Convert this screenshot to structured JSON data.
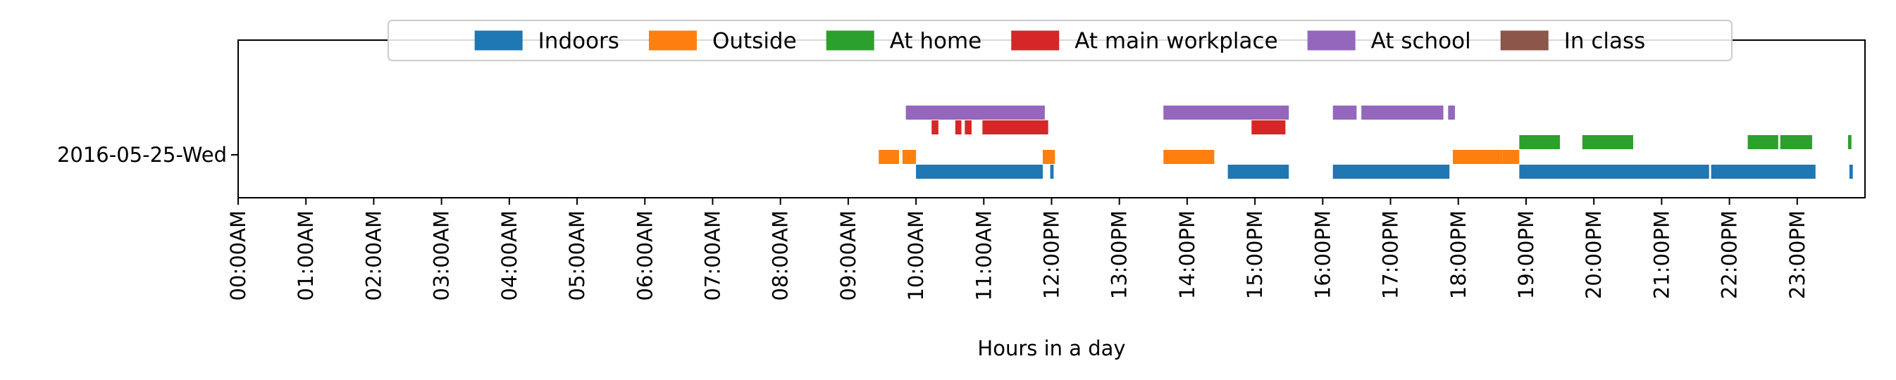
{
  "chart_data": {
    "type": "timeline",
    "xlabel": "Hours in a day",
    "ylabel": "",
    "row_label": "2016-05-25-Wed",
    "xlim": [
      0,
      24
    ],
    "x_ticks": [
      "00:00AM",
      "01:00AM",
      "02:00AM",
      "03:00AM",
      "04:00AM",
      "05:00AM",
      "06:00AM",
      "07:00AM",
      "08:00AM",
      "09:00AM",
      "10:00AM",
      "11:00AM",
      "12:00PM",
      "13:00PM",
      "14:00PM",
      "15:00PM",
      "16:00PM",
      "17:00PM",
      "18:00PM",
      "19:00PM",
      "20:00PM",
      "21:00PM",
      "22:00PM",
      "23:00PM"
    ],
    "grid": false,
    "legend_position": "top-center",
    "series": [
      {
        "name": "Indoors",
        "color": "#1f77b4",
        "intervals": [
          [
            10.0,
            11.87
          ],
          [
            11.98,
            12.03
          ],
          [
            14.6,
            15.5
          ],
          [
            16.15,
            17.87
          ],
          [
            18.9,
            21.7
          ],
          [
            21.73,
            23.27
          ],
          [
            23.77,
            23.82
          ]
        ]
      },
      {
        "name": "Outside",
        "color": "#ff7f0e",
        "intervals": [
          [
            9.45,
            9.75
          ],
          [
            9.8,
            10.0
          ],
          [
            11.87,
            12.05
          ],
          [
            13.65,
            14.4
          ],
          [
            17.92,
            18.65
          ],
          [
            18.65,
            18.9
          ]
        ]
      },
      {
        "name": "At home",
        "color": "#2ca02c",
        "intervals": [
          [
            18.9,
            19.5
          ],
          [
            19.83,
            20.58
          ],
          [
            22.27,
            22.72
          ],
          [
            22.75,
            23.22
          ],
          [
            23.75,
            23.8
          ]
        ]
      },
      {
        "name": "At main workplace",
        "color": "#d62728",
        "intervals": [
          [
            10.23,
            10.33
          ],
          [
            10.58,
            10.67
          ],
          [
            10.72,
            10.82
          ],
          [
            10.98,
            11.95
          ],
          [
            14.95,
            15.45
          ]
        ]
      },
      {
        "name": "At school",
        "color": "#9467bd",
        "intervals": [
          [
            9.85,
            11.9
          ],
          [
            13.65,
            15.5
          ],
          [
            16.15,
            16.5
          ],
          [
            16.57,
            17.78
          ],
          [
            17.85,
            17.95
          ]
        ]
      },
      {
        "name": "In class",
        "color": "#8c564b",
        "intervals": []
      }
    ]
  }
}
